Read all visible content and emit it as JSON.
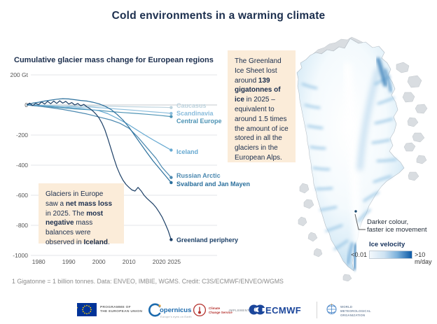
{
  "title": "Cold environments in a warming climate",
  "chart_data": {
    "type": "line",
    "title": "Cumulative glacier mass change for European regions",
    "ylabel": "Gt",
    "xlim": [
      1976,
      2025
    ],
    "ylim": [
      -1000,
      200
    ],
    "grid": true,
    "legend_position": "right-end-labels",
    "y_ticks": [
      {
        "v": 200,
        "label": "200 Gt"
      },
      {
        "v": 0,
        "label": "0"
      },
      {
        "v": -200,
        "label": "-200"
      },
      {
        "v": -400,
        "label": "-400"
      },
      {
        "v": -600,
        "label": "-600"
      },
      {
        "v": -800,
        "label": "-800"
      },
      {
        "v": -1000,
        "label": "-1000"
      }
    ],
    "x_ticks": [
      {
        "v": 1980,
        "label": "1980"
      },
      {
        "v": 1990,
        "label": "1990"
      },
      {
        "v": 2000,
        "label": "2000"
      },
      {
        "v": 2010,
        "label": "2010"
      },
      {
        "v": 2020,
        "label": "2020"
      },
      {
        "v": 2025,
        "label": "2025"
      }
    ],
    "series": [
      {
        "name": "Caucasus",
        "color": "#bdd3de",
        "points": [
          [
            1976,
            0
          ],
          [
            1980,
            -1
          ],
          [
            1984,
            -2
          ],
          [
            1988,
            -4
          ],
          [
            1992,
            -5
          ],
          [
            1996,
            -6
          ],
          [
            2000,
            -8
          ],
          [
            2004,
            -9
          ],
          [
            2008,
            -11
          ],
          [
            2012,
            -12
          ],
          [
            2016,
            -14
          ],
          [
            2020,
            -15
          ],
          [
            2024,
            -17
          ]
        ]
      },
      {
        "name": "Scandinavia",
        "color": "#8abddc",
        "points": [
          [
            1976,
            0
          ],
          [
            1979,
            -6
          ],
          [
            1982,
            -12
          ],
          [
            1985,
            -9
          ],
          [
            1988,
            -14
          ],
          [
            1991,
            -10
          ],
          [
            1994,
            -16
          ],
          [
            1997,
            -13
          ],
          [
            2000,
            -18
          ],
          [
            2003,
            -22
          ],
          [
            2006,
            -27
          ],
          [
            2009,
            -31
          ],
          [
            2012,
            -36
          ],
          [
            2015,
            -41
          ],
          [
            2018,
            -46
          ],
          [
            2021,
            -50
          ],
          [
            2024,
            -56
          ]
        ]
      },
      {
        "name": "Central Europe",
        "color": "#4e94b5",
        "points": [
          [
            1976,
            0
          ],
          [
            1980,
            -7
          ],
          [
            1984,
            -13
          ],
          [
            1988,
            -19
          ],
          [
            1992,
            -26
          ],
          [
            1996,
            -31
          ],
          [
            2000,
            -36
          ],
          [
            2004,
            -44
          ],
          [
            2008,
            -50
          ],
          [
            2012,
            -56
          ],
          [
            2016,
            -62
          ],
          [
            2020,
            -69
          ],
          [
            2024,
            -77
          ]
        ]
      },
      {
        "name": "Iceland",
        "color": "#66a9d1",
        "points": [
          [
            1976,
            2
          ],
          [
            1980,
            -2
          ],
          [
            1984,
            -7
          ],
          [
            1988,
            -13
          ],
          [
            1992,
            -20
          ],
          [
            1996,
            -28
          ],
          [
            2000,
            -38
          ],
          [
            2003,
            -58
          ],
          [
            2006,
            -88
          ],
          [
            2009,
            -120
          ],
          [
            2012,
            -158
          ],
          [
            2015,
            -196
          ],
          [
            2018,
            -232
          ],
          [
            2021,
            -266
          ],
          [
            2024,
            -300
          ]
        ]
      },
      {
        "name": "Russian Arctic",
        "color": "#4c89b0",
        "points": [
          [
            1976,
            0
          ],
          [
            1980,
            -8
          ],
          [
            1984,
            -18
          ],
          [
            1988,
            -30
          ],
          [
            1992,
            -44
          ],
          [
            1996,
            -60
          ],
          [
            2000,
            -80
          ],
          [
            2004,
            -100
          ],
          [
            2007,
            -122
          ],
          [
            2010,
            -155
          ],
          [
            2013,
            -215
          ],
          [
            2016,
            -285
          ],
          [
            2019,
            -355
          ],
          [
            2021,
            -415
          ],
          [
            2024,
            -482
          ]
        ]
      },
      {
        "name": "Svalbard and Jan Mayen",
        "color": "#2a6f9c",
        "points": [
          [
            1976,
            2
          ],
          [
            1978,
            12
          ],
          [
            1980,
            18
          ],
          [
            1982,
            26
          ],
          [
            1984,
            32
          ],
          [
            1986,
            38
          ],
          [
            1988,
            42
          ],
          [
            1990,
            40
          ],
          [
            1992,
            35
          ],
          [
            1994,
            30
          ],
          [
            1996,
            26
          ],
          [
            1998,
            18
          ],
          [
            2000,
            8
          ],
          [
            2002,
            -8
          ],
          [
            2004,
            -30
          ],
          [
            2006,
            -62
          ],
          [
            2008,
            -100
          ],
          [
            2010,
            -148
          ],
          [
            2012,
            -205
          ],
          [
            2014,
            -262
          ],
          [
            2016,
            -318
          ],
          [
            2018,
            -372
          ],
          [
            2020,
            -420
          ],
          [
            2022,
            -468
          ],
          [
            2024,
            -516
          ]
        ]
      },
      {
        "name": "Greenland periphery",
        "color": "#1d4067",
        "points": [
          [
            1976,
            0
          ],
          [
            1977,
            12
          ],
          [
            1978,
            -4
          ],
          [
            1979,
            10
          ],
          [
            1980,
            2
          ],
          [
            1981,
            20
          ],
          [
            1982,
            6
          ],
          [
            1983,
            24
          ],
          [
            1984,
            8
          ],
          [
            1985,
            26
          ],
          [
            1986,
            10
          ],
          [
            1987,
            28
          ],
          [
            1988,
            12
          ],
          [
            1989,
            24
          ],
          [
            1990,
            6
          ],
          [
            1991,
            16
          ],
          [
            1992,
            0
          ],
          [
            1993,
            10
          ],
          [
            1994,
            -6
          ],
          [
            1995,
            4
          ],
          [
            1996,
            -12
          ],
          [
            1997,
            -24
          ],
          [
            1998,
            -40
          ],
          [
            1999,
            -60
          ],
          [
            2000,
            -85
          ],
          [
            2001,
            -120
          ],
          [
            2002,
            -165
          ],
          [
            2003,
            -225
          ],
          [
            2004,
            -290
          ],
          [
            2005,
            -355
          ],
          [
            2006,
            -415
          ],
          [
            2007,
            -462
          ],
          [
            2008,
            -500
          ],
          [
            2009,
            -528
          ],
          [
            2010,
            -548
          ],
          [
            2011,
            -565
          ],
          [
            2012,
            -572
          ],
          [
            2013,
            -548
          ],
          [
            2014,
            -570
          ],
          [
            2015,
            -600
          ],
          [
            2016,
            -622
          ],
          [
            2017,
            -640
          ],
          [
            2018,
            -658
          ],
          [
            2019,
            -682
          ],
          [
            2020,
            -712
          ],
          [
            2021,
            -745
          ],
          [
            2022,
            -788
          ],
          [
            2023,
            -835
          ],
          [
            2024,
            -895
          ]
        ]
      }
    ]
  },
  "callouts": {
    "europe": {
      "segments": [
        {
          "t": "Glaciers in Europe saw a "
        },
        {
          "t": "net mass loss",
          "b": true
        },
        {
          "t": " in 2025. The "
        },
        {
          "t": "most negative",
          "b": true
        },
        {
          "t": " mass balances were observed in "
        },
        {
          "t": "Iceland",
          "b": true
        },
        {
          "t": "."
        }
      ]
    },
    "greenland": {
      "segments": [
        {
          "t": "The Greenland Ice Sheet lost around "
        },
        {
          "t": "139 gigatonnes of ice",
          "b": true
        },
        {
          "t": " in 2025 – equivalent to around 1.5 times the amount of ice stored in all the glaciers in the European Alps."
        }
      ]
    }
  },
  "map": {
    "annotation_line1": "Darker colour,",
    "annotation_line2": "faster ice movement",
    "legend_title": "Ice velocity",
    "legend_min": "<0.01",
    "legend_max": ">10 m/day"
  },
  "footer": {
    "note": "1 Gigatonne = 1 billion tonnes. Data: ENVEO, IMBIE, WGMS. Credit: C3S/ECMWF/ENVEO/WGMS",
    "eu_label_line1": "PROGRAMME OF",
    "eu_label_line2": "THE EUROPEAN UNION",
    "copernicus": "opernicus",
    "copernicus_tagline": "Europe's eyes on Earth",
    "c3s_line1": "Climate",
    "c3s_line2": "Change Service",
    "implemented_by": "IMPLEMENTED BY",
    "ecmwf": "ECMWF",
    "wmo_line1": "WORLD",
    "wmo_line2": "METEOROLOGICAL",
    "wmo_line3": "ORGANIZATION"
  }
}
